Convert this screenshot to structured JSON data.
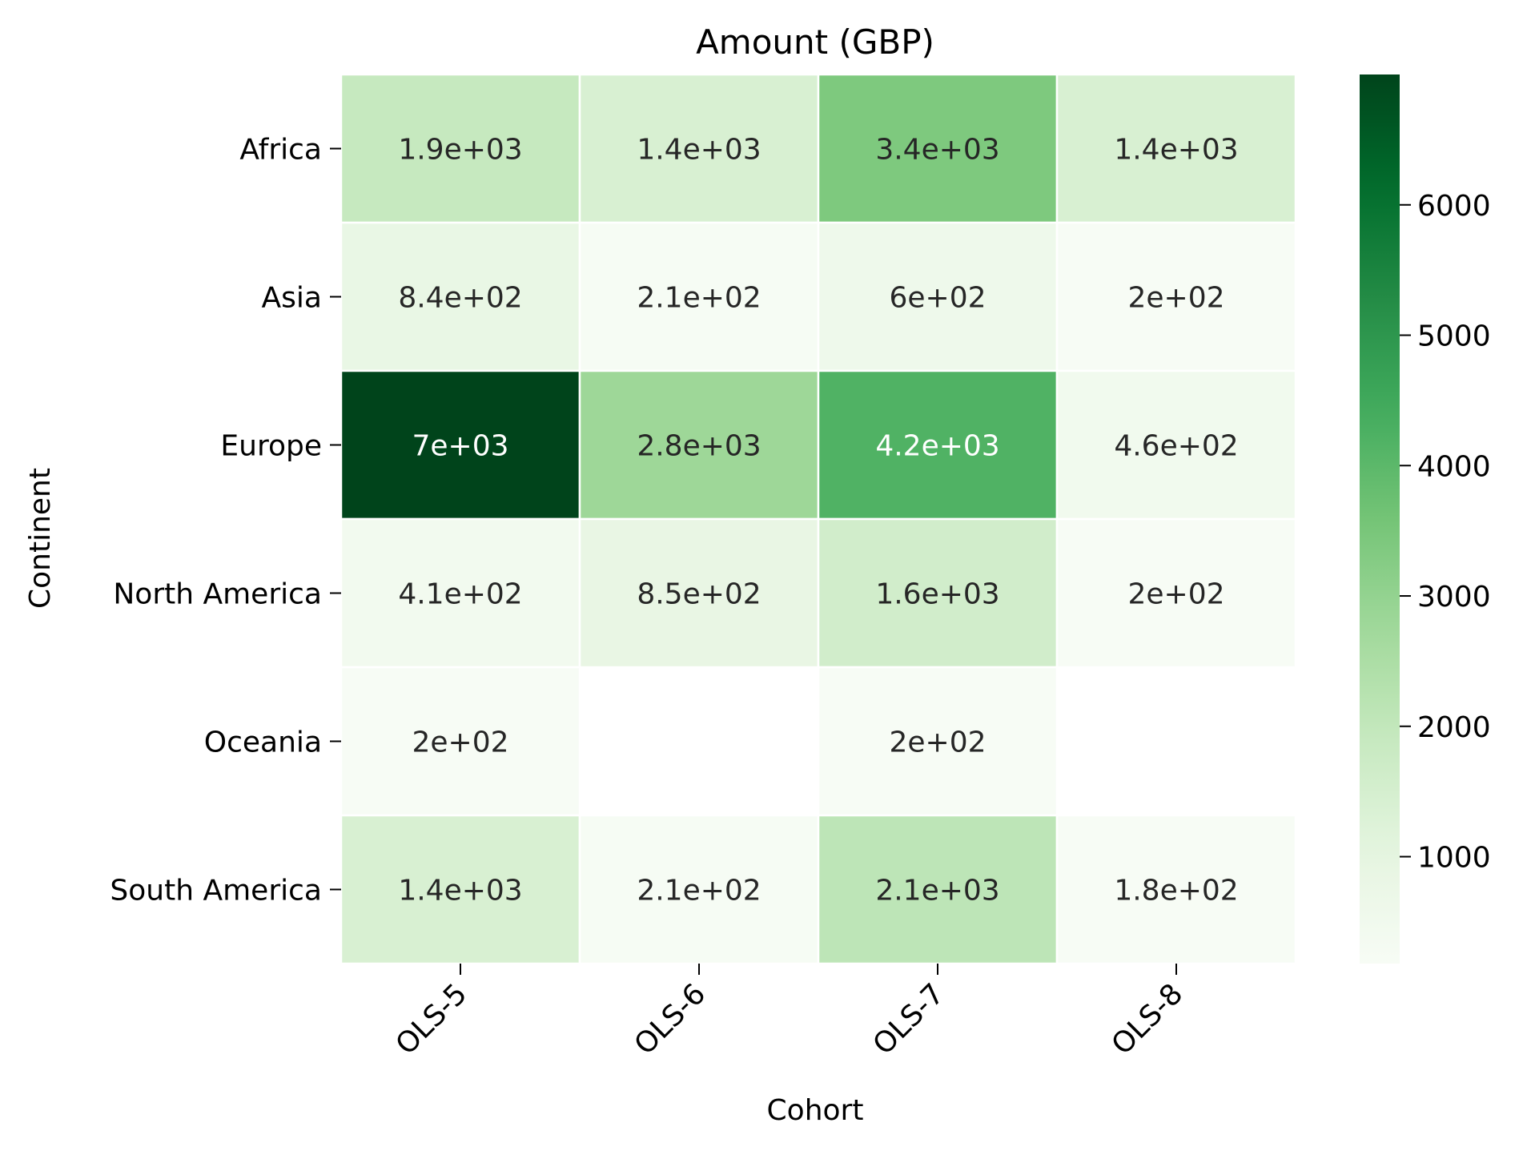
{
  "chart_data": {
    "type": "heatmap",
    "title": "Amount (GBP)",
    "xlabel": "Cohort",
    "ylabel": "Continent",
    "x_categories": [
      "OLS-5",
      "OLS-6",
      "OLS-7",
      "OLS-8"
    ],
    "y_categories": [
      "Africa",
      "Asia",
      "Europe",
      "North America",
      "Oceania",
      "South America"
    ],
    "values": [
      [
        1900,
        1400,
        3400,
        1400
      ],
      [
        840,
        210,
        600,
        200
      ],
      [
        7000,
        2800,
        4200,
        460
      ],
      [
        410,
        850,
        1600,
        200
      ],
      [
        200,
        null,
        200,
        null
      ],
      [
        1400,
        210,
        2100,
        180
      ]
    ],
    "cell_labels": [
      [
        "1.9e+03",
        "1.4e+03",
        "3.4e+03",
        "1.4e+03"
      ],
      [
        "8.4e+02",
        "2.1e+02",
        "6e+02",
        "2e+02"
      ],
      [
        "7e+03",
        "2.8e+03",
        "4.2e+03",
        "4.6e+02"
      ],
      [
        "4.1e+02",
        "8.5e+02",
        "1.6e+03",
        "2e+02"
      ],
      [
        "2e+02",
        "",
        "2e+02",
        ""
      ],
      [
        "1.4e+03",
        "2.1e+02",
        "2.1e+03",
        "1.8e+02"
      ]
    ],
    "colormap": "Greens",
    "colorbar": {
      "min": 180,
      "max": 7000,
      "ticks": [
        1000,
        2000,
        3000,
        4000,
        5000,
        6000
      ],
      "tick_labels": [
        "1000",
        "2000",
        "3000",
        "4000",
        "5000",
        "6000"
      ]
    },
    "colors": {
      "low": "#f7fcf5",
      "high": "#00441b",
      "text_dark": "#262626",
      "text_light": "#ffffff"
    }
  }
}
